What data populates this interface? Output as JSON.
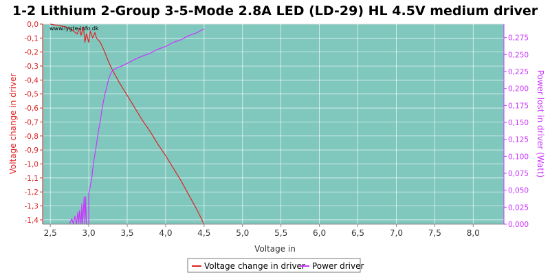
{
  "chart_data": {
    "type": "line",
    "title": "1-2 Lithium 2-Group 3-5-Mode 2.8A LED (LD-29) HL 4.5V medium driver",
    "watermark": "www.lygte-info.dk",
    "xlabel": "Voltage in",
    "ylabel_left": "Voltage change in driver",
    "ylabel_right": "Power lost in driver (Watt)",
    "xlim": [
      2.4,
      8.4
    ],
    "ylim_left": [
      -1.43,
      0.0
    ],
    "ylim_right": [
      0.0,
      0.295
    ],
    "x_ticks": [
      "2,5",
      "3,0",
      "3,5",
      "4,0",
      "4,5",
      "5,0",
      "5,5",
      "6,0",
      "6,5",
      "7,0",
      "7,5",
      "8,0"
    ],
    "x_tick_values": [
      2.5,
      3.0,
      3.5,
      4.0,
      4.5,
      5.0,
      5.5,
      6.0,
      6.5,
      7.0,
      7.5,
      8.0
    ],
    "y_left_ticks": [
      "0,0",
      "-0,1",
      "-0,2",
      "-0,3",
      "-0,4",
      "-0,5",
      "-0,6",
      "-0,7",
      "-0,8",
      "-0,9",
      "-1,0",
      "-1,1",
      "-1,2",
      "-1,3",
      "-1,4"
    ],
    "y_left_tick_values": [
      0.0,
      -0.1,
      -0.2,
      -0.3,
      -0.4,
      -0.5,
      -0.6,
      -0.7,
      -0.8,
      -0.9,
      -1.0,
      -1.1,
      -1.2,
      -1.3,
      -1.4
    ],
    "y_right_ticks": [
      "0,275",
      "0,250",
      "0,225",
      "0,200",
      "0,175",
      "0,150",
      "0,125",
      "0,100",
      "0,075",
      "0,050",
      "0,025",
      "0,000"
    ],
    "y_right_tick_values": [
      0.275,
      0.25,
      0.225,
      0.2,
      0.175,
      0.15,
      0.125,
      0.1,
      0.075,
      0.05,
      0.025,
      0.0
    ],
    "grid": true,
    "legend_position": "bottom-center",
    "plot_background": "#80c8be",
    "series": [
      {
        "name": "Voltage change in driver",
        "axis": "left",
        "color": "#dd2222",
        "x": [
          2.5,
          2.6,
          2.7,
          2.75,
          2.8,
          2.85,
          2.88,
          2.9,
          2.93,
          2.95,
          2.97,
          3.0,
          3.02,
          3.05,
          3.08,
          3.1,
          3.15,
          3.2,
          3.25,
          3.3,
          3.35,
          3.4,
          3.5,
          3.6,
          3.7,
          3.8,
          3.9,
          4.0,
          4.1,
          4.2,
          4.3,
          4.4,
          4.5
        ],
        "values": [
          0.0,
          -0.01,
          -0.02,
          -0.03,
          -0.05,
          -0.07,
          -0.03,
          -0.08,
          -0.02,
          -0.13,
          -0.07,
          -0.13,
          -0.05,
          -0.1,
          -0.06,
          -0.1,
          -0.13,
          -0.19,
          -0.26,
          -0.32,
          -0.37,
          -0.42,
          -0.51,
          -0.6,
          -0.69,
          -0.77,
          -0.86,
          -0.94,
          -1.03,
          -1.12,
          -1.22,
          -1.32,
          -1.43
        ]
      },
      {
        "name": "Power driver",
        "axis": "right",
        "color": "#cc33ff",
        "x": [
          2.75,
          2.78,
          2.8,
          2.82,
          2.84,
          2.86,
          2.87,
          2.88,
          2.9,
          2.91,
          2.92,
          2.94,
          2.95,
          2.96,
          2.97,
          2.98,
          3.0,
          3.0,
          3.02,
          3.04,
          3.05,
          3.07,
          3.09,
          3.11,
          3.13,
          3.15,
          3.17,
          3.19,
          3.21,
          3.23,
          3.25,
          3.27,
          3.3,
          3.33,
          3.36,
          3.4,
          3.45,
          3.5,
          3.6,
          3.7,
          3.8,
          3.9,
          4.0,
          4.1,
          4.2,
          4.3,
          4.4,
          4.5
        ],
        "values": [
          0.0,
          0.008,
          0.0,
          0.012,
          0.0,
          0.018,
          0.0,
          0.02,
          0.0,
          0.03,
          0.0,
          0.04,
          0.0,
          0.04,
          0.0,
          0.0,
          0.0,
          0.045,
          0.056,
          0.068,
          0.08,
          0.096,
          0.11,
          0.125,
          0.14,
          0.152,
          0.168,
          0.18,
          0.192,
          0.2,
          0.21,
          0.218,
          0.225,
          0.228,
          0.23,
          0.232,
          0.234,
          0.237,
          0.243,
          0.248,
          0.252,
          0.258,
          0.262,
          0.268,
          0.272,
          0.278,
          0.282,
          0.288
        ]
      }
    ]
  }
}
